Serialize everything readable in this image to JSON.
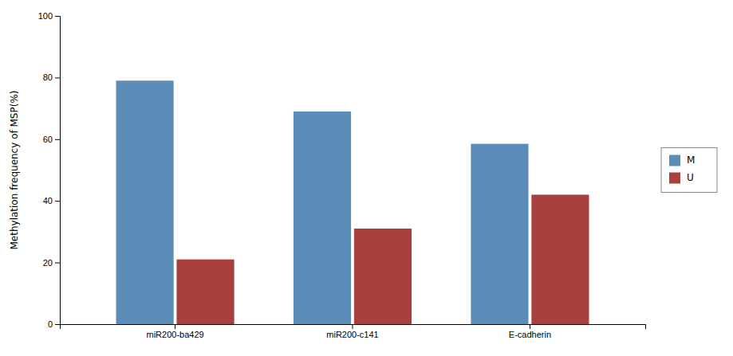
{
  "chart_data": {
    "type": "bar",
    "ylabel": "Methylation frequency of MSP(%)",
    "categories": [
      "miR200-ba429",
      "miR200-c141",
      "E-cadherin"
    ],
    "series": [
      {
        "name": "M",
        "color": "#5B8DB8",
        "values": [
          79,
          69,
          58.5
        ]
      },
      {
        "name": "U",
        "color": "#A84040",
        "values": [
          21,
          31,
          42
        ]
      }
    ],
    "ylim": [
      0,
      100
    ],
    "yticks": [
      0,
      20,
      40,
      60,
      80,
      100
    ],
    "grid": false,
    "legend": "right"
  }
}
